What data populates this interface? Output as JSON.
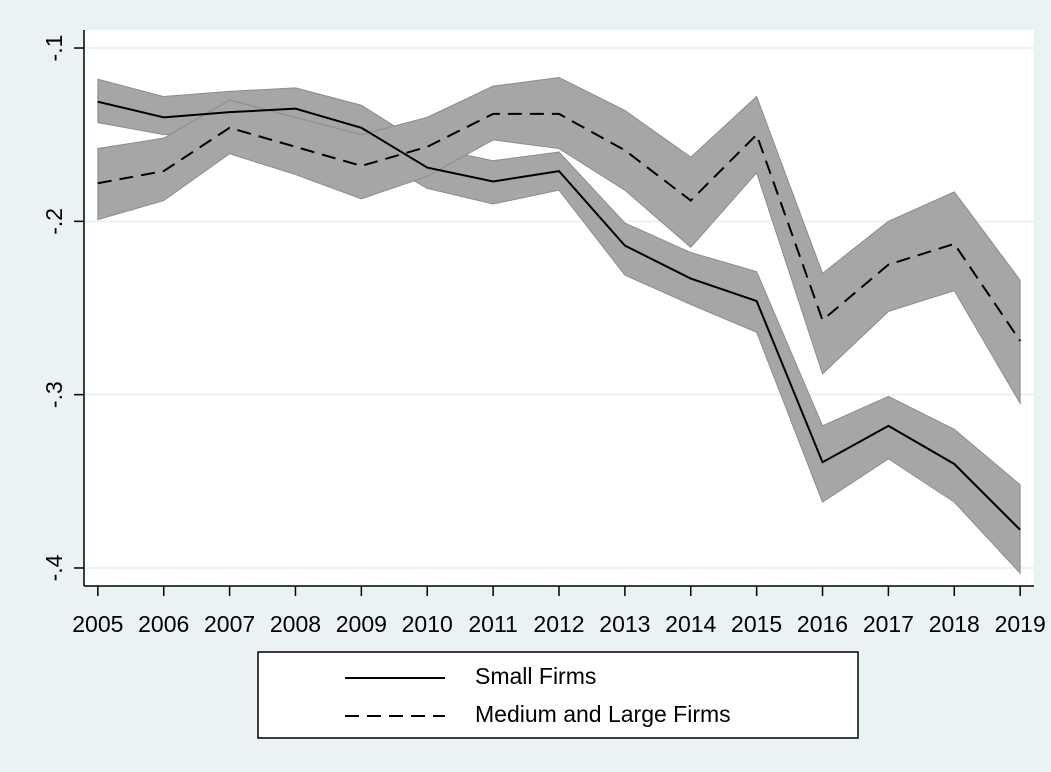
{
  "chart_data": {
    "type": "line",
    "x": [
      2005,
      2006,
      2007,
      2008,
      2009,
      2010,
      2011,
      2012,
      2013,
      2014,
      2015,
      2016,
      2017,
      2018,
      2019
    ],
    "xlim": [
      2004.79,
      2019.21
    ],
    "xticks": [
      2005,
      2006,
      2007,
      2008,
      2009,
      2010,
      2011,
      2012,
      2013,
      2014,
      2015,
      2016,
      2017,
      2018,
      2019
    ],
    "ylim": [
      -0.4104,
      -0.0896
    ],
    "yticks": [
      {
        "value": -0.1,
        "label": "-.1"
      },
      {
        "value": -0.2,
        "label": "-.2"
      },
      {
        "value": -0.3,
        "label": "-.3"
      },
      {
        "value": -0.4,
        "label": "-.4"
      }
    ],
    "grid": true,
    "legend": "bottom",
    "band_color": "#a6a6a6",
    "series": [
      {
        "name": "Small Firms",
        "color": "#000000",
        "line_style": "solid",
        "values": [
          -0.131,
          -0.14,
          -0.137,
          -0.135,
          -0.146,
          -0.169,
          -0.177,
          -0.171,
          -0.214,
          -0.233,
          -0.246,
          -0.339,
          -0.318,
          -0.34,
          -0.378
        ],
        "upper": [
          -0.118,
          -0.128,
          -0.125,
          -0.123,
          -0.133,
          -0.157,
          -0.165,
          -0.16,
          -0.201,
          -0.218,
          -0.229,
          -0.318,
          -0.301,
          -0.32,
          -0.352
        ],
        "lower": [
          -0.143,
          -0.15,
          -0.148,
          -0.146,
          -0.159,
          -0.181,
          -0.19,
          -0.182,
          -0.231,
          -0.248,
          -0.264,
          -0.362,
          -0.337,
          -0.362,
          -0.403
        ]
      },
      {
        "name": "Medium and Large Firms",
        "color": "#000000",
        "line_style": "dashed",
        "values": [
          -0.178,
          -0.171,
          -0.146,
          -0.157,
          -0.168,
          -0.157,
          -0.138,
          -0.138,
          -0.159,
          -0.188,
          -0.15,
          -0.257,
          -0.225,
          -0.213,
          -0.269
        ],
        "upper": [
          -0.158,
          -0.152,
          -0.13,
          -0.14,
          -0.15,
          -0.14,
          -0.122,
          -0.117,
          -0.136,
          -0.163,
          -0.128,
          -0.23,
          -0.2,
          -0.183,
          -0.234
        ],
        "lower": [
          -0.199,
          -0.188,
          -0.161,
          -0.173,
          -0.187,
          -0.174,
          -0.153,
          -0.158,
          -0.182,
          -0.215,
          -0.172,
          -0.288,
          -0.252,
          -0.24,
          -0.305
        ]
      }
    ]
  }
}
